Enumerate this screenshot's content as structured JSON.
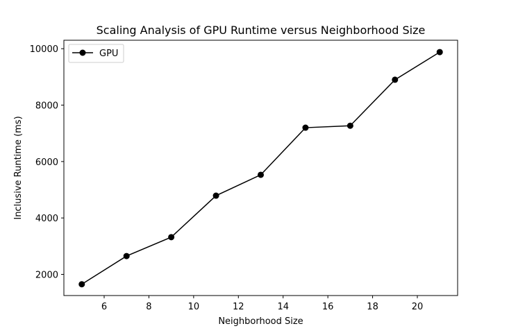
{
  "chart_data": {
    "type": "line",
    "title": "Scaling Analysis of GPU Runtime versus Neighborhood Size",
    "xlabel": "Neighborhood Size",
    "ylabel": "Inclusive Runtime (ms)",
    "xlim": [
      4.2,
      21.8
    ],
    "ylim": [
      1250,
      10300
    ],
    "xticks": [
      6,
      8,
      10,
      12,
      14,
      16,
      18,
      20
    ],
    "yticks": [
      2000,
      4000,
      6000,
      8000,
      10000
    ],
    "legend_position": "upper-left",
    "series": [
      {
        "name": "GPU",
        "color": "#000000",
        "marker": "circle",
        "x": [
          5,
          7,
          9,
          11,
          13,
          15,
          17,
          19,
          21
        ],
        "y": [
          1650,
          2650,
          3320,
          4790,
          5530,
          7200,
          7270,
          8900,
          9880
        ]
      }
    ]
  }
}
